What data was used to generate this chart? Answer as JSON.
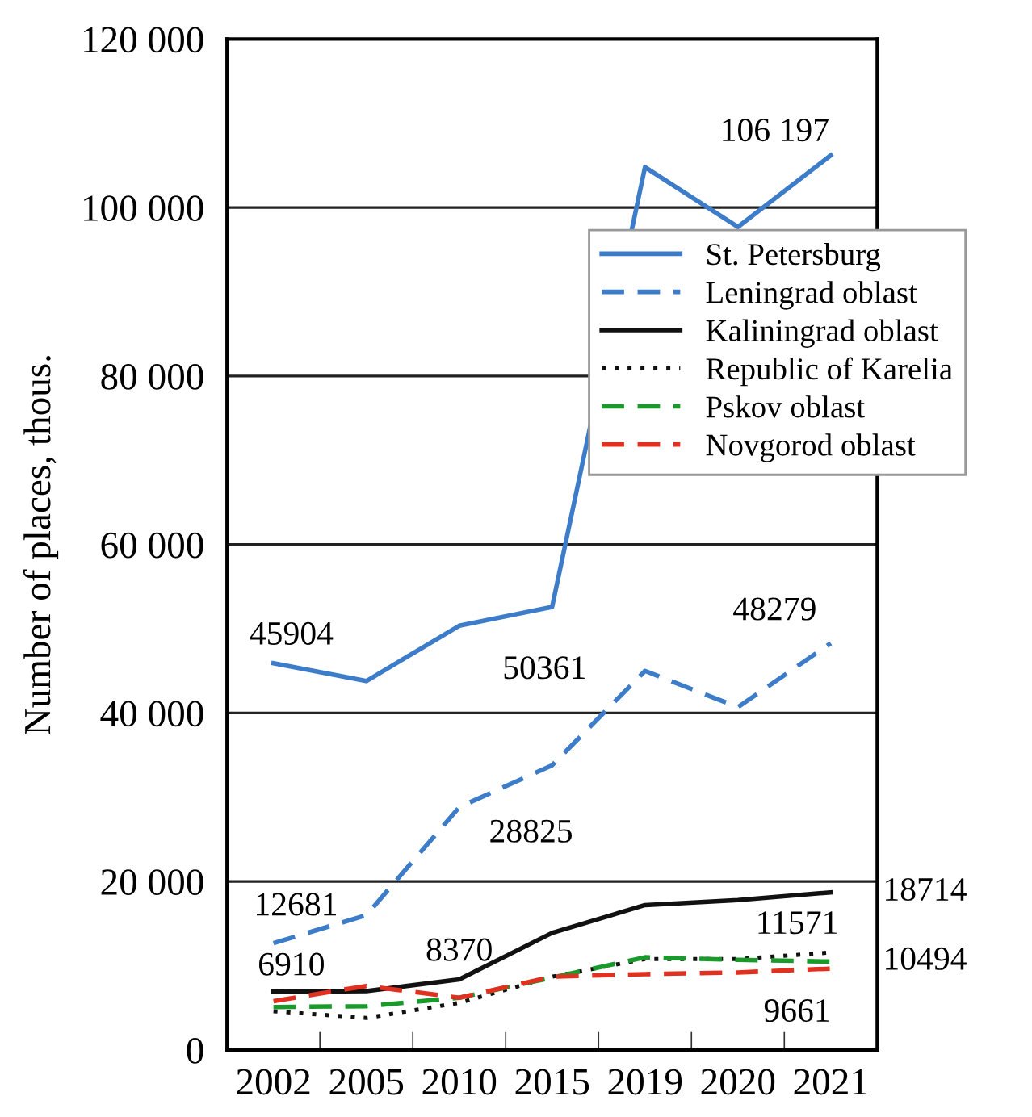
{
  "chart_data": {
    "type": "line",
    "ylabel": "Number of places, thous.",
    "categories": [
      "2002",
      "2005",
      "2010",
      "2015",
      "2019",
      "2020",
      "2021"
    ],
    "ylim": [
      0,
      120000
    ],
    "yticks": [
      0,
      {
        "value": 20000,
        "label": "20 000"
      },
      {
        "value": 40000,
        "label": "40 000"
      },
      {
        "value": 60000,
        "label": "60 000"
      },
      {
        "value": 80000,
        "label": "80 000"
      },
      {
        "value": 100000,
        "label": "100 000"
      },
      {
        "value": 120000,
        "label": "120 000"
      }
    ],
    "grid": "y",
    "legend": "right",
    "marker": "none",
    "series": [
      {
        "name": "St. Petersburg",
        "color": "#3d7cc9",
        "line_style": "solid",
        "values": [
          45904,
          43800,
          50361,
          52600,
          104800,
          97700,
          106197
        ],
        "value_labels": [
          "45904",
          null,
          "50361",
          null,
          null,
          null,
          "106 197"
        ]
      },
      {
        "name": "Leningrad oblast",
        "color": "#3d7cc9",
        "line_style": "dashed",
        "values": [
          12681,
          16000,
          28825,
          33800,
          45000,
          40700,
          48279
        ],
        "value_labels": [
          "12681",
          null,
          "28825",
          null,
          null,
          null,
          "48279"
        ]
      },
      {
        "name": "Kaliningrad oblast",
        "color": "#111111",
        "line_style": "solid",
        "values": [
          6910,
          7000,
          8370,
          13900,
          17200,
          17800,
          18714
        ],
        "value_labels": [
          "6910",
          null,
          "8370",
          null,
          null,
          null,
          "18714"
        ]
      },
      {
        "name": "Republic of Karelia",
        "color": "#111111",
        "line_style": "dotted",
        "values": [
          4600,
          3800,
          5600,
          8700,
          10800,
          10800,
          11571
        ],
        "value_labels": [
          null,
          null,
          null,
          null,
          null,
          null,
          "11571"
        ]
      },
      {
        "name": "Pskov oblast",
        "color": "#1a9a2a",
        "line_style": "dashed",
        "values": [
          5100,
          5200,
          6200,
          8600,
          11000,
          10700,
          10494
        ],
        "value_labels": [
          null,
          null,
          null,
          null,
          null,
          null,
          "10494"
        ]
      },
      {
        "name": "Novgorod oblast",
        "color": "#e03020",
        "line_style": "dashed",
        "values": [
          5800,
          7600,
          6200,
          8700,
          9000,
          9200,
          9661
        ],
        "value_labels": [
          null,
          null,
          null,
          null,
          null,
          null,
          "9661"
        ]
      }
    ]
  }
}
